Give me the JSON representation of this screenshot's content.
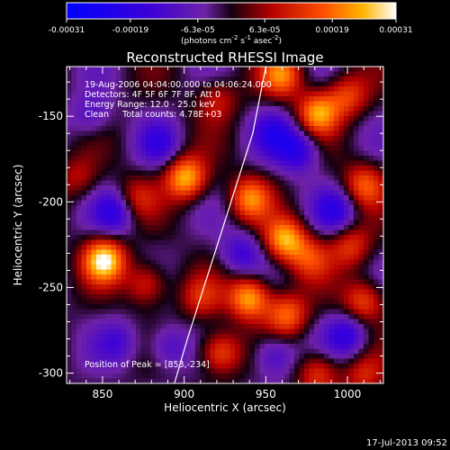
{
  "chart_data": {
    "type": "heatmap",
    "title": "Reconstructed RHESSI Image",
    "xlabel": "Heliocentric X (arcsec)",
    "ylabel": "Heliocentric Y (arcsec)",
    "xlim": [
      828,
      1022
    ],
    "ylim": [
      -306,
      -121
    ],
    "x_ticks": [
      850,
      900,
      950,
      1000
    ],
    "x_tick_labels": [
      "850",
      "900",
      "950",
      "1000"
    ],
    "y_ticks": [
      -150,
      -200,
      -250,
      -300
    ],
    "y_tick_labels": [
      "-150",
      "-200",
      "-250",
      "-300"
    ],
    "colorbar": {
      "range": [
        -0.00031,
        0.00031
      ],
      "ticks": [
        -0.00031,
        -0.00019,
        -6.3e-05,
        6.3e-05,
        0.00019,
        0.00031
      ],
      "tick_labels": [
        "-0.00031",
        "-0.00019",
        "-6.3e-05",
        "6.3e-05",
        "0.00019",
        "0.00031"
      ],
      "units_label": "(photons cm",
      "units_sup1": "-2",
      "units_mid": " s",
      "units_sup2": "-1",
      "units_end": " asec",
      "units_sup3": "-2",
      "units_close": ")"
    },
    "annotations": {
      "line1": "19-Aug-2006 04:04:00.000 to 04:06:24.000",
      "line2": "Detectors: 4F 5F 6F 7F 8F, Att 0",
      "line3": "Energy Range: 12.0 - 25.0 keV",
      "line4": "Clean     Total counts: 4.78E+03",
      "peak": "Position of Peak = [853,-234]"
    },
    "footer_date": "17-Jul-2013 09:52",
    "peak_position": [
      853,
      -234
    ],
    "limb_curve": {
      "x": [
        894,
        902,
        912,
        922,
        932,
        942,
        950
      ],
      "y": [
        -306,
        -280,
        -250,
        -220,
        -190,
        -160,
        -121
      ]
    },
    "sources": [
      {
        "x": 851,
        "y": -234,
        "v": 0.00031
      },
      {
        "x": 901,
        "y": -186,
        "v": 0.00027
      },
      {
        "x": 920,
        "y": -140,
        "v": 0.00012
      },
      {
        "x": 960,
        "y": -126,
        "v": 0.00021
      },
      {
        "x": 982,
        "y": -148,
        "v": 0.00024
      },
      {
        "x": 1000,
        "y": -138,
        "v": 0.00016
      },
      {
        "x": 1010,
        "y": -190,
        "v": 0.00018
      },
      {
        "x": 940,
        "y": -198,
        "v": 0.00021
      },
      {
        "x": 962,
        "y": -222,
        "v": 0.00026
      },
      {
        "x": 977,
        "y": -233,
        "v": 0.00014
      },
      {
        "x": 1002,
        "y": -226,
        "v": 0.00015
      },
      {
        "x": 1010,
        "y": -258,
        "v": 0.00018
      },
      {
        "x": 940,
        "y": -256,
        "v": 0.00027
      },
      {
        "x": 910,
        "y": -256,
        "v": 0.00012
      },
      {
        "x": 963,
        "y": -266,
        "v": 0.0002
      },
      {
        "x": 922,
        "y": -288,
        "v": 0.0002
      },
      {
        "x": 982,
        "y": -300,
        "v": 0.00016
      },
      {
        "x": 1010,
        "y": -302,
        "v": 0.00012
      },
      {
        "x": 870,
        "y": -198,
        "v": 0.00012
      },
      {
        "x": 835,
        "y": -186,
        "v": 0.0001
      },
      {
        "x": 877,
        "y": -248,
        "v": 0.00016
      },
      {
        "x": 885,
        "y": -166,
        "v": -0.00012
      },
      {
        "x": 858,
        "y": -206,
        "v": -0.00016
      },
      {
        "x": 843,
        "y": -150,
        "v": -0.0001
      },
      {
        "x": 970,
        "y": -170,
        "v": -0.00018
      },
      {
        "x": 955,
        "y": -160,
        "v": -0.00014
      },
      {
        "x": 993,
        "y": -205,
        "v": -0.00015
      },
      {
        "x": 935,
        "y": -230,
        "v": -0.00013
      },
      {
        "x": 955,
        "y": -290,
        "v": -0.00014
      },
      {
        "x": 890,
        "y": -285,
        "v": -0.00012
      },
      {
        "x": 860,
        "y": -282,
        "v": -0.0001
      },
      {
        "x": 1000,
        "y": -278,
        "v": -0.00016
      }
    ]
  }
}
